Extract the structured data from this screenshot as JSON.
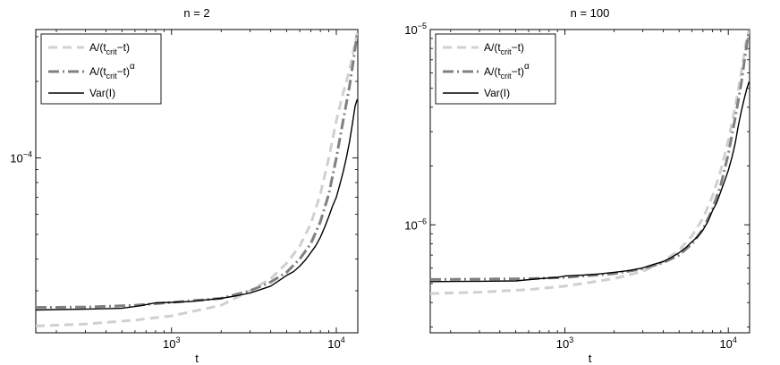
{
  "chart_data": [
    {
      "type": "line",
      "title": "n = 2",
      "xlabel": "t",
      "ylabel": "",
      "xscale": "log",
      "yscale": "log",
      "xlim": [
        150,
        13500
      ],
      "ylim": [
        2.05e-05,
        0.00032
      ],
      "x_ticks": [
        {
          "base": "10",
          "exp": "3",
          "value": 1000
        },
        {
          "base": "10",
          "exp": "4",
          "value": 10000
        }
      ],
      "y_ticks": [
        {
          "base": "10",
          "exp": "−4",
          "value": 0.0001
        }
      ],
      "grid": false,
      "legend": {
        "position": "top-left",
        "entries": [
          {
            "series": 0,
            "text": "A/(t",
            "sub": "crit",
            "tail": "−t)",
            "sup": ""
          },
          {
            "series": 1,
            "text": "A/(t",
            "sub": "crit",
            "tail": "−t)",
            "sup": "α"
          },
          {
            "series": 2,
            "text": "Var(I)",
            "sub": "",
            "tail": "",
            "sup": ""
          }
        ]
      },
      "series": [
        {
          "style": "dashed",
          "color": "#d0d0d0",
          "x": [
            150,
            300,
            600,
            1000,
            2000,
            3000,
            4000,
            5000,
            6000,
            7000,
            8000,
            9000,
            10000,
            11000,
            12000,
            12800,
            13400
          ],
          "y": [
            2.18e-05,
            2.22e-05,
            2.3e-05,
            2.39e-05,
            2.63e-05,
            3e-05,
            3.35e-05,
            3.85e-05,
            4.5e-05,
            5.5e-05,
            7.2e-05,
            0.0001,
            0.00014,
            0.00018,
            0.00022,
            0.00027,
            0.00031
          ]
        },
        {
          "style": "dashdot",
          "color": "#808080",
          "x": [
            150,
            300,
            600,
            1000,
            2000,
            3000,
            4000,
            5000,
            6000,
            7000,
            8000,
            9000,
            10000,
            11000,
            12000,
            12800,
            13400
          ],
          "y": [
            2.58e-05,
            2.59e-05,
            2.63e-05,
            2.7e-05,
            2.8e-05,
            3e-05,
            3.25e-05,
            3.55e-05,
            4e-05,
            4.6e-05,
            5.6e-05,
            7.2e-05,
            0.0001,
            0.00014,
            0.00019,
            0.00025,
            0.00031
          ]
        },
        {
          "style": "solid",
          "color": "#000000",
          "x": [
            150,
            300,
            500,
            650,
            800,
            1000,
            1300,
            1600,
            2000,
            2500,
            3000,
            3500,
            4000,
            4500,
            5000,
            5500,
            6000,
            6500,
            7000,
            7500,
            8000,
            8500,
            9000,
            9500,
            10000,
            10500,
            11000,
            11500,
            12000,
            12500,
            13000,
            13400
          ],
          "y": [
            2.52e-05,
            2.54e-05,
            2.56e-05,
            2.62e-05,
            2.69e-05,
            2.7e-05,
            2.72e-05,
            2.76e-05,
            2.8e-05,
            2.87e-05,
            2.94e-05,
            3.04e-05,
            3.13e-05,
            3.29e-05,
            3.45e-05,
            3.57e-05,
            3.75e-05,
            3.97e-05,
            4.24e-05,
            4.51e-05,
            4.87e-05,
            5.34e-05,
            5.88e-05,
            6.48e-05,
            7e-05,
            7.85e-05,
            8.8e-05,
            0.0001,
            0.000115,
            0.000135,
            0.00016,
            0.00017
          ]
        }
      ]
    },
    {
      "type": "line",
      "title": "n = 100",
      "xlabel": "t",
      "ylabel": "",
      "xscale": "log",
      "yscale": "log",
      "xlim": [
        150,
        13500
      ],
      "ylim": [
        2.8e-07,
        1e-05
      ],
      "x_ticks": [
        {
          "base": "10",
          "exp": "3",
          "value": 1000
        },
        {
          "base": "10",
          "exp": "4",
          "value": 10000
        }
      ],
      "y_ticks": [
        {
          "base": "10",
          "exp": "−5",
          "value": 1e-05
        },
        {
          "base": "10",
          "exp": "−6",
          "value": 1e-06
        }
      ],
      "grid": false,
      "legend": {
        "position": "top-left",
        "entries": [
          {
            "series": 0,
            "text": "A/(t",
            "sub": "crit",
            "tail": "−t)",
            "sup": ""
          },
          {
            "series": 1,
            "text": "A/(t",
            "sub": "crit",
            "tail": "−t)",
            "sup": "α"
          },
          {
            "series": 2,
            "text": "Var(I)",
            "sub": "",
            "tail": "",
            "sup": ""
          }
        ]
      },
      "series": [
        {
          "style": "dashed",
          "color": "#d0d0d0",
          "x": [
            150,
            300,
            600,
            1000,
            2000,
            3000,
            4000,
            5000,
            6000,
            7000,
            8000,
            9000,
            10000,
            11000,
            12000,
            12800,
            13400
          ],
          "y": [
            4.45e-07,
            4.52e-07,
            4.66e-07,
            4.85e-07,
            5.3e-07,
            5.78e-07,
            6.5e-07,
            7.42e-07,
            8.8e-07,
            1.08e-06,
            1.4e-06,
            1.9e-06,
            2.7e-06,
            4e-06,
            6e-06,
            8.5e-06,
            1e-05
          ]
        },
        {
          "style": "dashdot",
          "color": "#808080",
          "x": [
            150,
            300,
            600,
            1000,
            2000,
            3000,
            4000,
            5000,
            6000,
            7000,
            8000,
            9000,
            10000,
            11000,
            12000,
            12800,
            13400
          ],
          "y": [
            5.25e-07,
            5.27e-07,
            5.3e-07,
            5.38e-07,
            5.62e-07,
            5.96e-07,
            6.4e-07,
            7e-07,
            8e-07,
            9.5e-07,
            1.2e-06,
            1.6e-06,
            2.3e-06,
            3.5e-06,
            5.3e-06,
            7.8e-06,
            1e-05
          ]
        },
        {
          "style": "solid",
          "color": "#000000",
          "x": [
            150,
            300,
            500,
            700,
            900,
            1000,
            1300,
            1600,
            2000,
            2500,
            3000,
            3500,
            4000,
            4500,
            5000,
            5500,
            6000,
            6500,
            7000,
            7500,
            8000,
            8500,
            9000,
            9500,
            10000,
            10500,
            11000,
            11500,
            12000,
            12500,
            13000,
            13400
          ],
          "y": [
            5.12e-07,
            5.14e-07,
            5.16e-07,
            5.3e-07,
            5.38e-07,
            5.47e-07,
            5.53e-07,
            5.6e-07,
            5.71e-07,
            5.84e-07,
            6.02e-07,
            6.28e-07,
            6.48e-07,
            6.82e-07,
            7.2e-07,
            7.65e-07,
            8.2e-07,
            8.7e-07,
            9.41e-07,
            1.04e-06,
            1.18e-06,
            1.3e-06,
            1.48e-06,
            1.68e-06,
            1.9e-06,
            2.2e-06,
            2.6e-06,
            3.2e-06,
            3.8e-06,
            4.4e-06,
            5e-06,
            5.4e-06
          ]
        }
      ]
    }
  ]
}
